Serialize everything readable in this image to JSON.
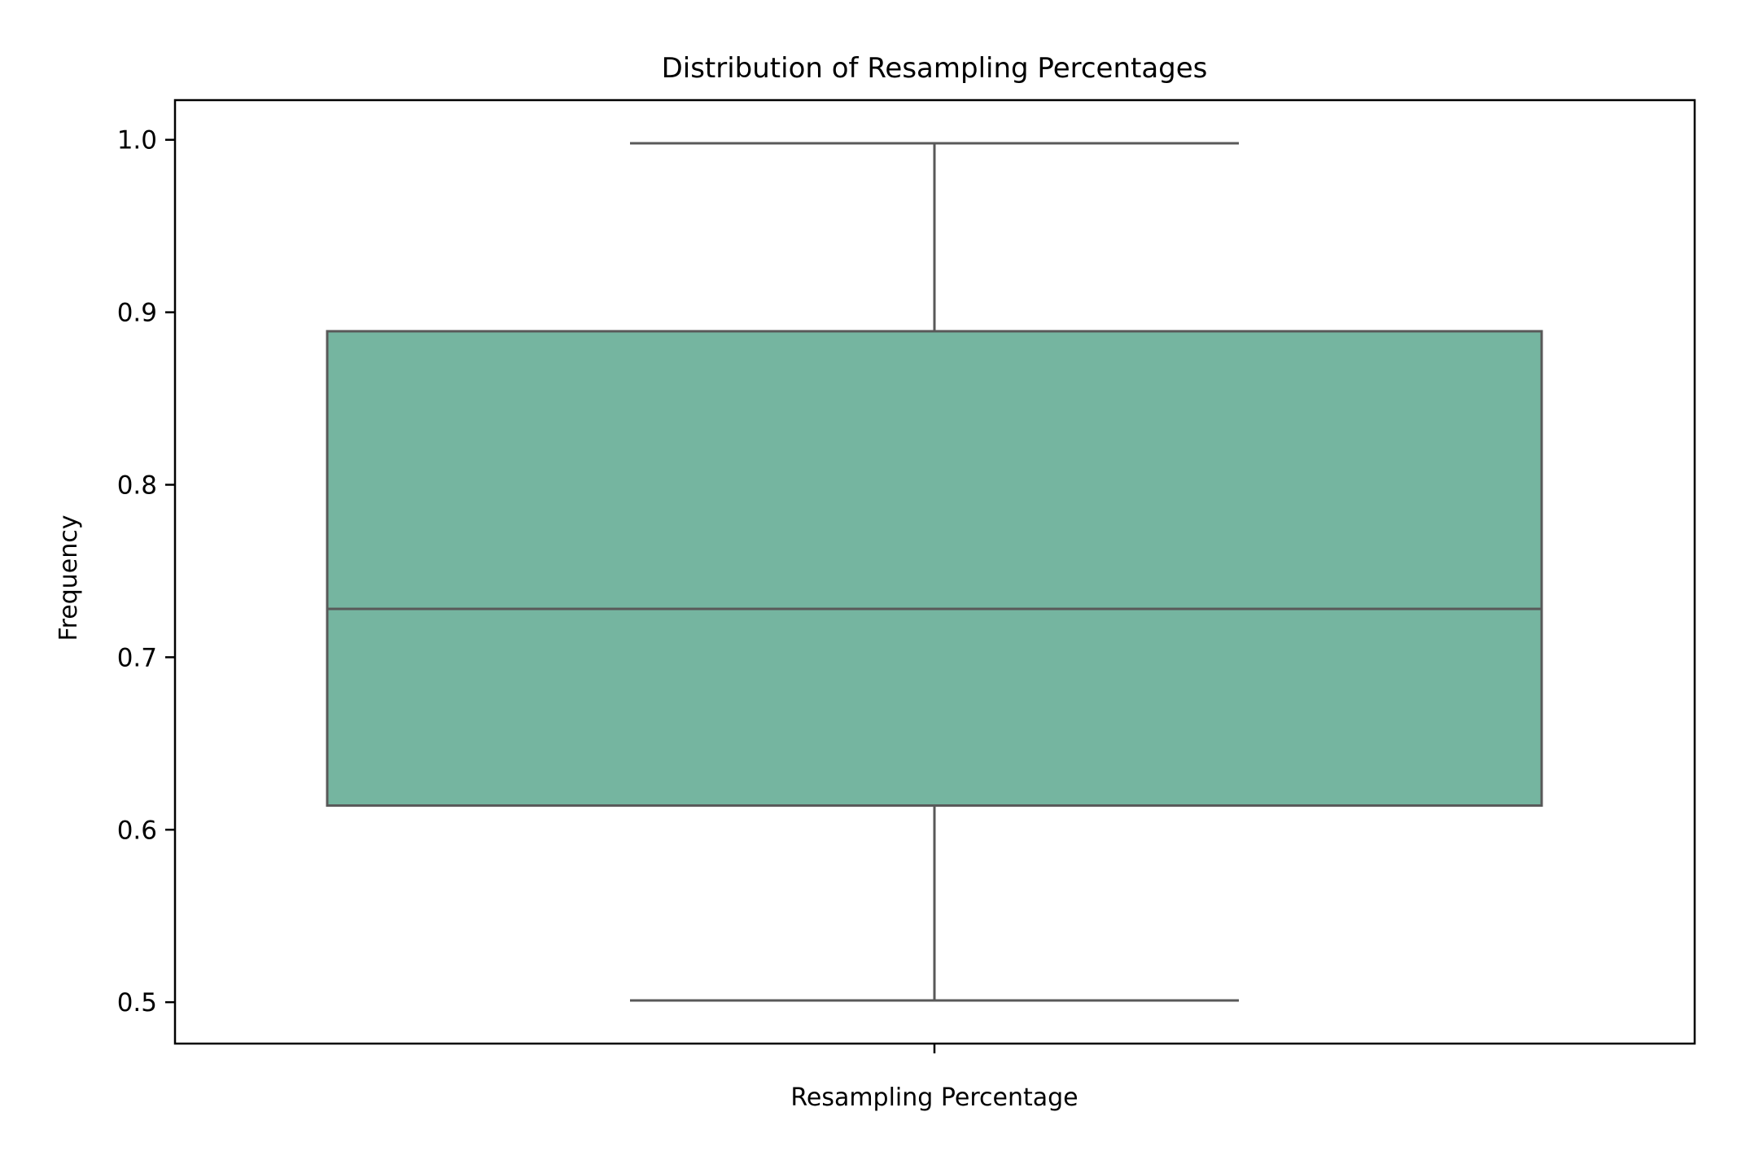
{
  "chart_data": {
    "type": "box",
    "title": "Distribution of Resampling Percentages",
    "xlabel": "Resampling Percentage",
    "ylabel": "Frequency",
    "ylim": [
      0.476,
      1.023
    ],
    "yticks": [
      0.5,
      0.6,
      0.7,
      0.8,
      0.9,
      1.0
    ],
    "ytick_labels": [
      "0.5",
      "0.6",
      "0.7",
      "0.8",
      "0.9",
      "1.0"
    ],
    "grid": false,
    "legend": "none",
    "box": {
      "whisker_low": 0.501,
      "q1": 0.614,
      "median": 0.728,
      "q3": 0.889,
      "whisker_high": 0.998
    },
    "colors": {
      "box_fill": "#75b5a0",
      "box_line": "#595959",
      "axes": "#000000"
    }
  }
}
